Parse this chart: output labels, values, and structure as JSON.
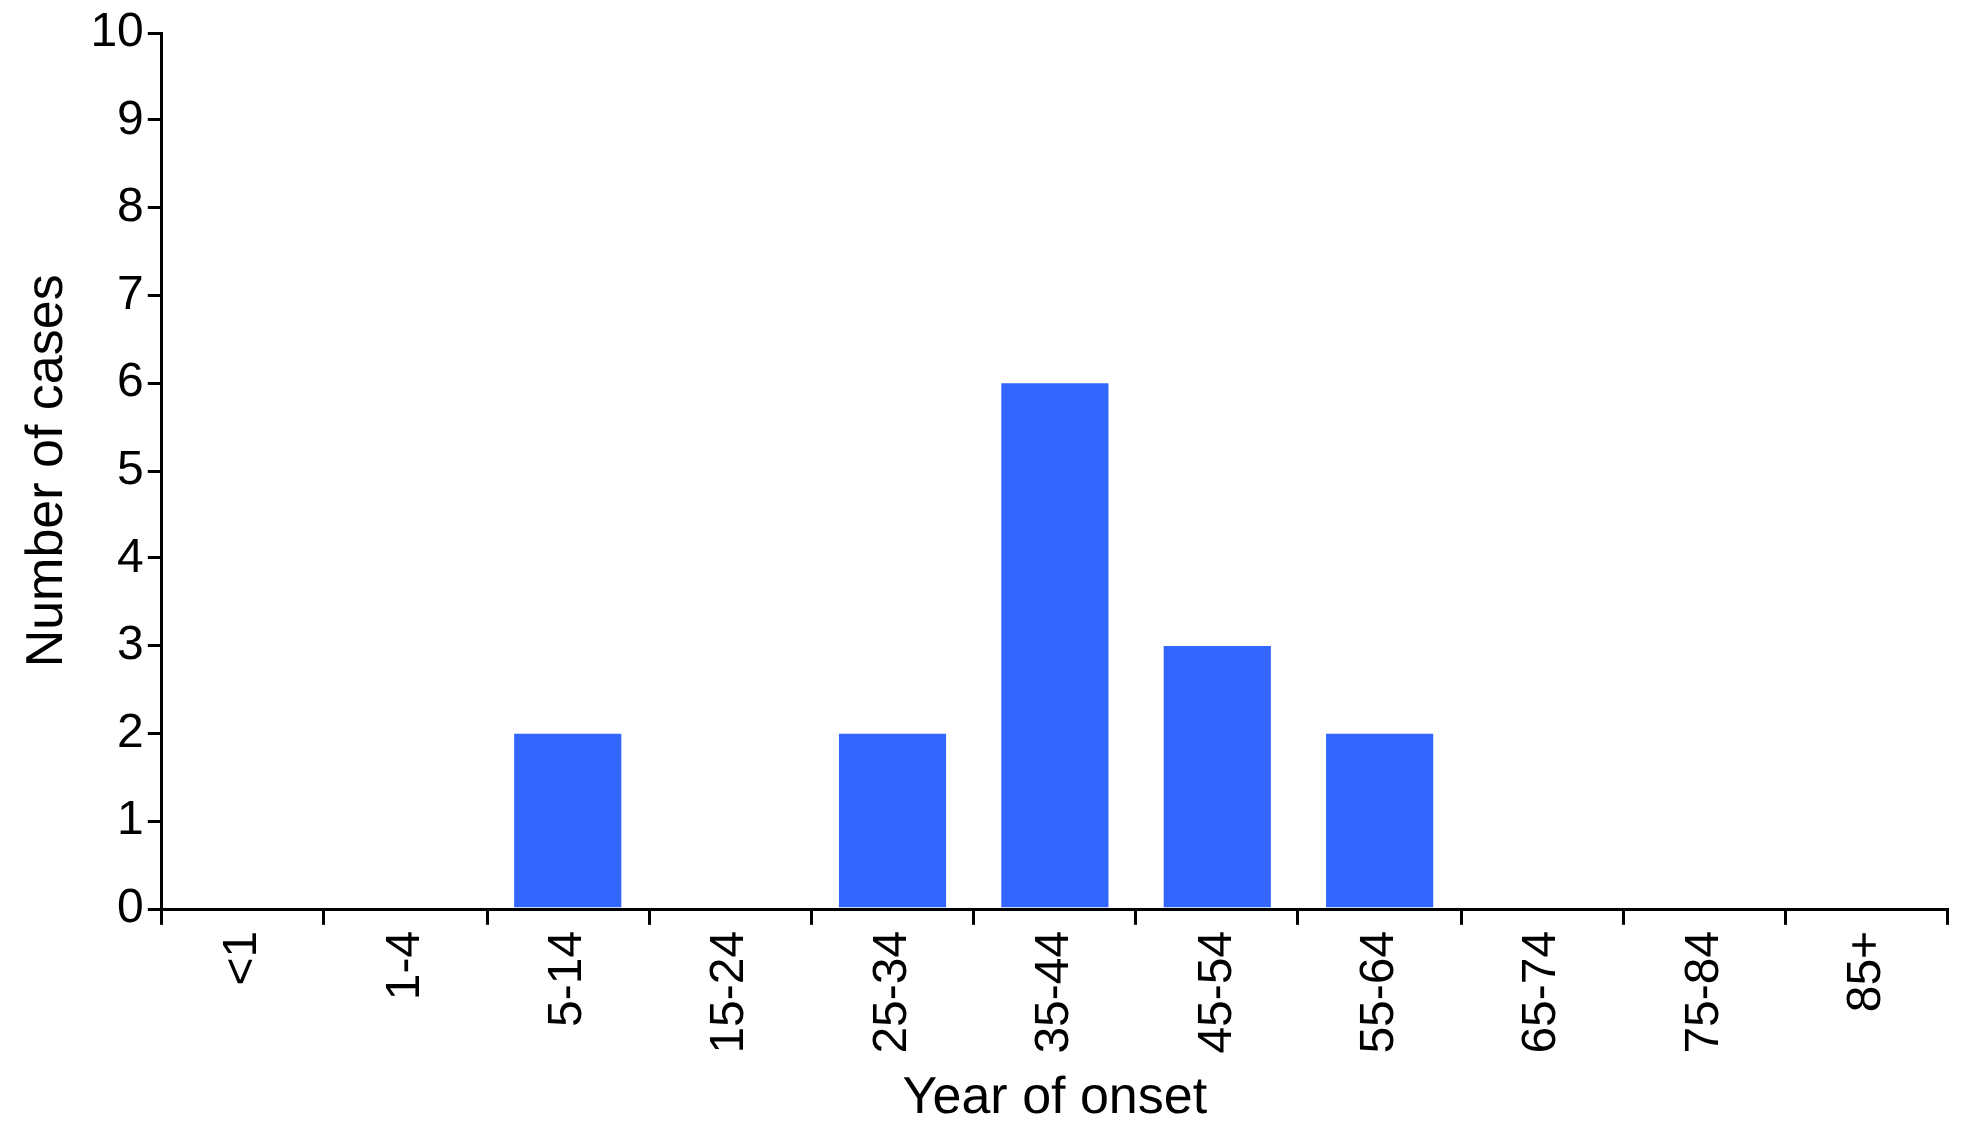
{
  "chart_data": {
    "type": "bar",
    "xlabel": "Year of onset",
    "ylabel": "Number of cases",
    "categories": [
      "<1",
      "1-4",
      "5-14",
      "15-24",
      "25-34",
      "35-44",
      "45-54",
      "55-64",
      "65-74",
      "75-84",
      "85+"
    ],
    "values": [
      0,
      0,
      2,
      0,
      2,
      6,
      3,
      2,
      0,
      0,
      0
    ],
    "color": "#3366ff",
    "ylim": [
      0,
      10
    ],
    "yticks": [
      0,
      1,
      2,
      3,
      4,
      5,
      6,
      7,
      8,
      9,
      10
    ],
    "grid": false,
    "legend": false
  }
}
